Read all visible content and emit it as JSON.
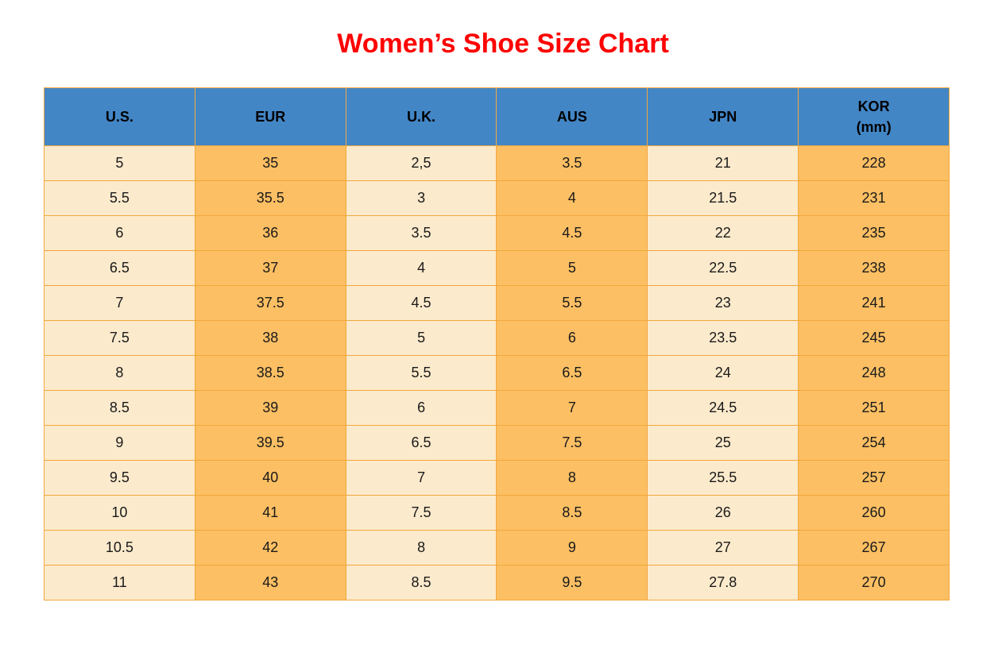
{
  "title": "Women’s Shoe Size Chart",
  "colors": {
    "title_color": "#FF0000",
    "header_bg": "#4386C6",
    "col_light": "#FCEACC",
    "col_dark": "#FCBF63",
    "border_color": "#F2A83C",
    "text_color": "#1a1a1a"
  },
  "chart_data": {
    "type": "table",
    "title": "Women’s Shoe Size Chart",
    "columns": [
      {
        "label": "U.S.",
        "sublabel": ""
      },
      {
        "label": "EUR",
        "sublabel": ""
      },
      {
        "label": "U.K.",
        "sublabel": ""
      },
      {
        "label": "AUS",
        "sublabel": ""
      },
      {
        "label": "JPN",
        "sublabel": ""
      },
      {
        "label": "KOR",
        "sublabel": "(mm)"
      }
    ],
    "column_fill_pattern": [
      "light",
      "dark",
      "light",
      "dark",
      "light",
      "dark"
    ],
    "rows": [
      [
        "5",
        "35",
        "2,5",
        "3.5",
        "21",
        "228"
      ],
      [
        "5.5",
        "35.5",
        "3",
        "4",
        "21.5",
        "231"
      ],
      [
        "6",
        "36",
        "3.5",
        "4.5",
        "22",
        "235"
      ],
      [
        "6.5",
        "37",
        "4",
        "5",
        "22.5",
        "238"
      ],
      [
        "7",
        "37.5",
        "4.5",
        "5.5",
        "23",
        "241"
      ],
      [
        "7.5",
        "38",
        "5",
        "6",
        "23.5",
        "245"
      ],
      [
        "8",
        "38.5",
        "5.5",
        "6.5",
        "24",
        "248"
      ],
      [
        "8.5",
        "39",
        "6",
        "7",
        "24.5",
        "251"
      ],
      [
        "9",
        "39.5",
        "6.5",
        "7.5",
        "25",
        "254"
      ],
      [
        "9.5",
        "40",
        "7",
        "8",
        "25.5",
        "257"
      ],
      [
        "10",
        "41",
        "7.5",
        "8.5",
        "26",
        "260"
      ],
      [
        "10.5",
        "42",
        "8",
        "9",
        "27",
        "267"
      ],
      [
        "11",
        "43",
        "8.5",
        "9.5",
        "27.8",
        "270"
      ]
    ]
  }
}
